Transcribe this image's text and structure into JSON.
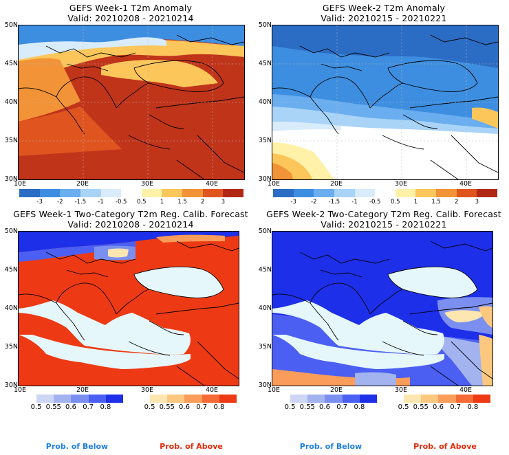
{
  "panels": [
    {
      "title1": "GEFS Week-1 T2m Anomaly",
      "title2": "Valid: 20210208 - 20210214"
    },
    {
      "title1": "GEFS Week-2 T2m Anomaly",
      "title2": "Valid: 20210215 - 20210221"
    },
    {
      "title1": "GEFS Week-1 Two-Category T2m Reg. Calib. Forecast",
      "title2": "Valid: 20210208 - 20210214"
    },
    {
      "title1": "GEFS Week-2 Two-Category T2m Reg. Calib. Forecast",
      "title2": "Valid: 20210215 - 20210221"
    }
  ],
  "lat_labels": [
    "50N",
    "45N",
    "40N",
    "35N",
    "30N"
  ],
  "lon_labels": [
    "10E",
    "20E",
    "30E",
    "40E"
  ],
  "anomaly_colorbar": {
    "labels": [
      "-3",
      "-2",
      "-1.5",
      "-1",
      "-0.5",
      "0.5",
      "1",
      "1.5",
      "2",
      "3"
    ],
    "colors": [
      "#2b6cc4",
      "#3d8ee0",
      "#6aaef0",
      "#a9d3f7",
      "#d8ecfb",
      "#ffffff",
      "#fff2a8",
      "#fcc65a",
      "#f29338",
      "#e0551f",
      "#b02814"
    ]
  },
  "prob_colorbar": {
    "below_labels": [
      "0.5",
      "0.55",
      "0.6",
      "0.7",
      "0.8"
    ],
    "above_labels": [
      "0.5",
      "0.55",
      "0.6",
      "0.7",
      "0.8"
    ],
    "below_colors": [
      "#cdd6f4",
      "#a3b3f0",
      "#7b8ff0",
      "#4b5ff2",
      "#1d2fe8"
    ],
    "above_colors": [
      "#fde6b0",
      "#fcc880",
      "#fa9c5a",
      "#f56a35",
      "#ee3a14"
    ]
  },
  "legend": {
    "below": "Prob. of Below",
    "above": "Prob. of Above",
    "below_color": "#1f7fe0",
    "above_color": "#e02a0a"
  }
}
